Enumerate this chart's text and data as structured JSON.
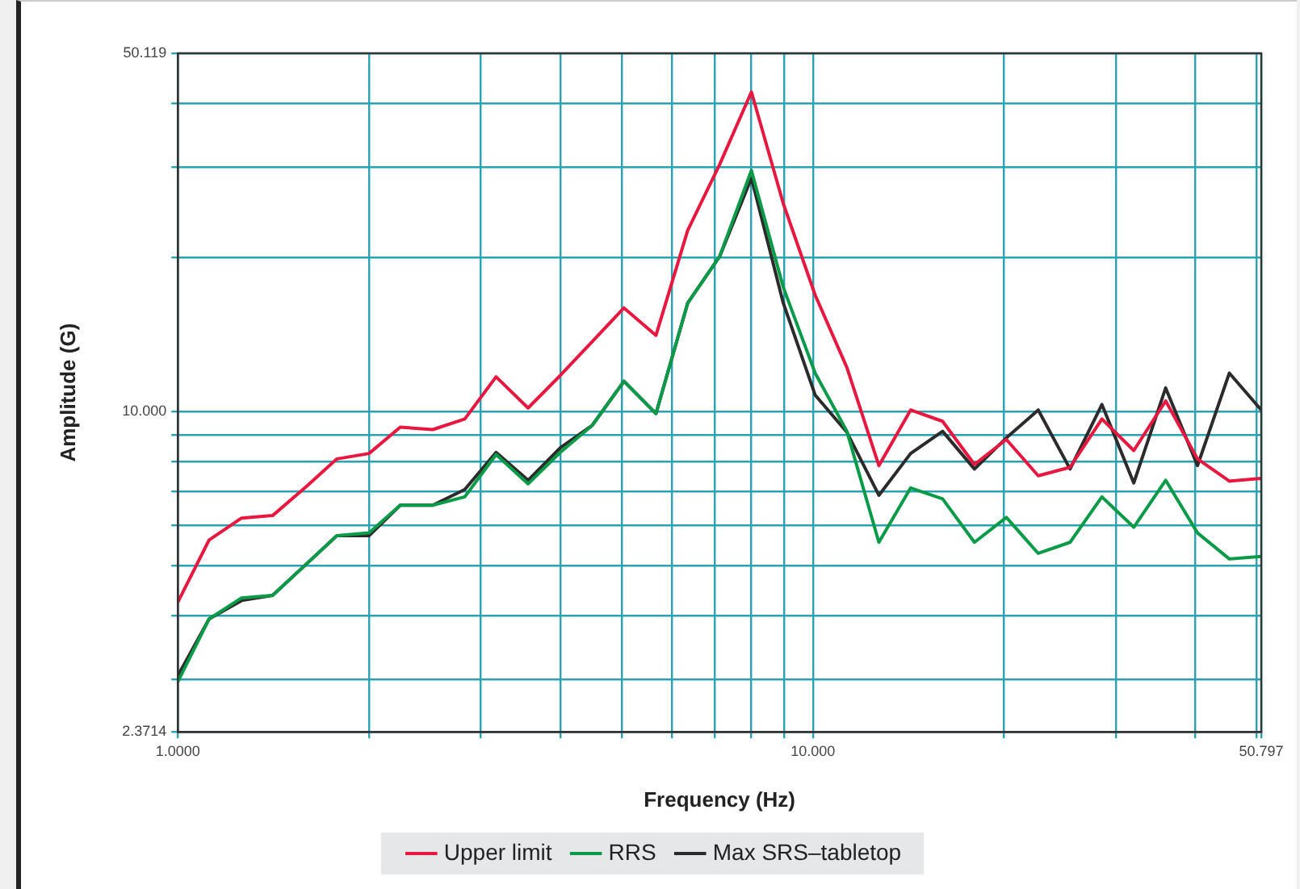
{
  "chart_data": {
    "type": "line",
    "xlabel": "Frequency (Hz)",
    "ylabel": "Amplitude (G)",
    "log": "xy",
    "grid": true,
    "legend": "bottom",
    "marker": "none",
    "line_style": "solid",
    "x": [
      1,
      1.12,
      1.26,
      1.41,
      1.59,
      1.78,
      2,
      2.24,
      2.52,
      2.83,
      3.17,
      3.56,
      4,
      4.49,
      5.04,
      5.66,
      6.35,
      7.13,
      8,
      8.98,
      10.08,
      11.31,
      12.7,
      14.25,
      16,
      17.96,
      20.16,
      22.63,
      25.4,
      28.51,
      32,
      35.92,
      40.32,
      45.25,
      50.797
    ],
    "xlim": [
      1,
      50.797
    ],
    "xticks": [
      {
        "value": 1,
        "label": "1.0000"
      },
      {
        "value": 2,
        "label": null
      },
      {
        "value": 3,
        "label": null
      },
      {
        "value": 4,
        "label": null
      },
      {
        "value": 5,
        "label": null
      },
      {
        "value": 6,
        "label": null
      },
      {
        "value": 7,
        "label": null
      },
      {
        "value": 8,
        "label": null
      },
      {
        "value": 9,
        "label": null
      },
      {
        "value": 10,
        "label": "10.000"
      },
      {
        "value": 20,
        "label": null
      },
      {
        "value": 30,
        "label": null
      },
      {
        "value": 40,
        "label": null
      },
      {
        "value": 50,
        "label": null
      },
      {
        "value": 50.797,
        "label": "50.797"
      }
    ],
    "ylim": [
      2.3714,
      50.119
    ],
    "yticks": [
      {
        "value": 2.3714,
        "label": "2.3714"
      },
      {
        "value": 3,
        "label": null
      },
      {
        "value": 4,
        "label": null
      },
      {
        "value": 5,
        "label": null
      },
      {
        "value": 6,
        "label": null
      },
      {
        "value": 7,
        "label": null
      },
      {
        "value": 8,
        "label": null
      },
      {
        "value": 9,
        "label": null
      },
      {
        "value": 10,
        "label": "10.000"
      },
      {
        "value": 20,
        "label": null
      },
      {
        "value": 30,
        "label": null
      },
      {
        "value": 40,
        "label": null
      },
      {
        "value": 50.119,
        "label": "50.119"
      }
    ],
    "series": [
      {
        "name": "Upper limit",
        "color": "#e8173f",
        "values": [
          4.25,
          5.62,
          6.2,
          6.27,
          7.13,
          8.09,
          8.29,
          9.33,
          9.23,
          9.68,
          11.7,
          10.17,
          11.77,
          13.7,
          15.95,
          14.1,
          22.6,
          30.4,
          42.1,
          25.5,
          16.9,
          12.2,
          7.85,
          10.08,
          9.58,
          7.89,
          8.83,
          7.5,
          7.79,
          9.68,
          8.4,
          10.5,
          8.09,
          7.32,
          7.41
        ]
      },
      {
        "name": "RRS",
        "color": "#0b9b48",
        "values": [
          2.97,
          3.94,
          4.33,
          4.38,
          5.03,
          5.73,
          5.8,
          6.57,
          6.57,
          6.82,
          8.25,
          7.23,
          8.33,
          9.4,
          11.47,
          9.92,
          16.3,
          20.1,
          29.6,
          17.5,
          11.9,
          9.16,
          5.56,
          7.1,
          6.76,
          5.56,
          6.22,
          5.29,
          5.56,
          6.82,
          5.95,
          7.35,
          5.8,
          5.16,
          5.22
        ]
      },
      {
        "name": "Max SRS–tabletop",
        "color": "#2b2b2b",
        "values": [
          3.05,
          3.94,
          4.28,
          4.38,
          5.03,
          5.73,
          5.73,
          6.57,
          6.57,
          7.05,
          8.33,
          7.35,
          8.5,
          9.4,
          11.47,
          9.92,
          16.3,
          20.1,
          28.6,
          16.3,
          10.78,
          9.12,
          6.87,
          8.29,
          9.16,
          7.73,
          8.89,
          10.08,
          7.73,
          10.33,
          7.26,
          11.13,
          7.85,
          11.9,
          10.08
        ]
      }
    ]
  }
}
